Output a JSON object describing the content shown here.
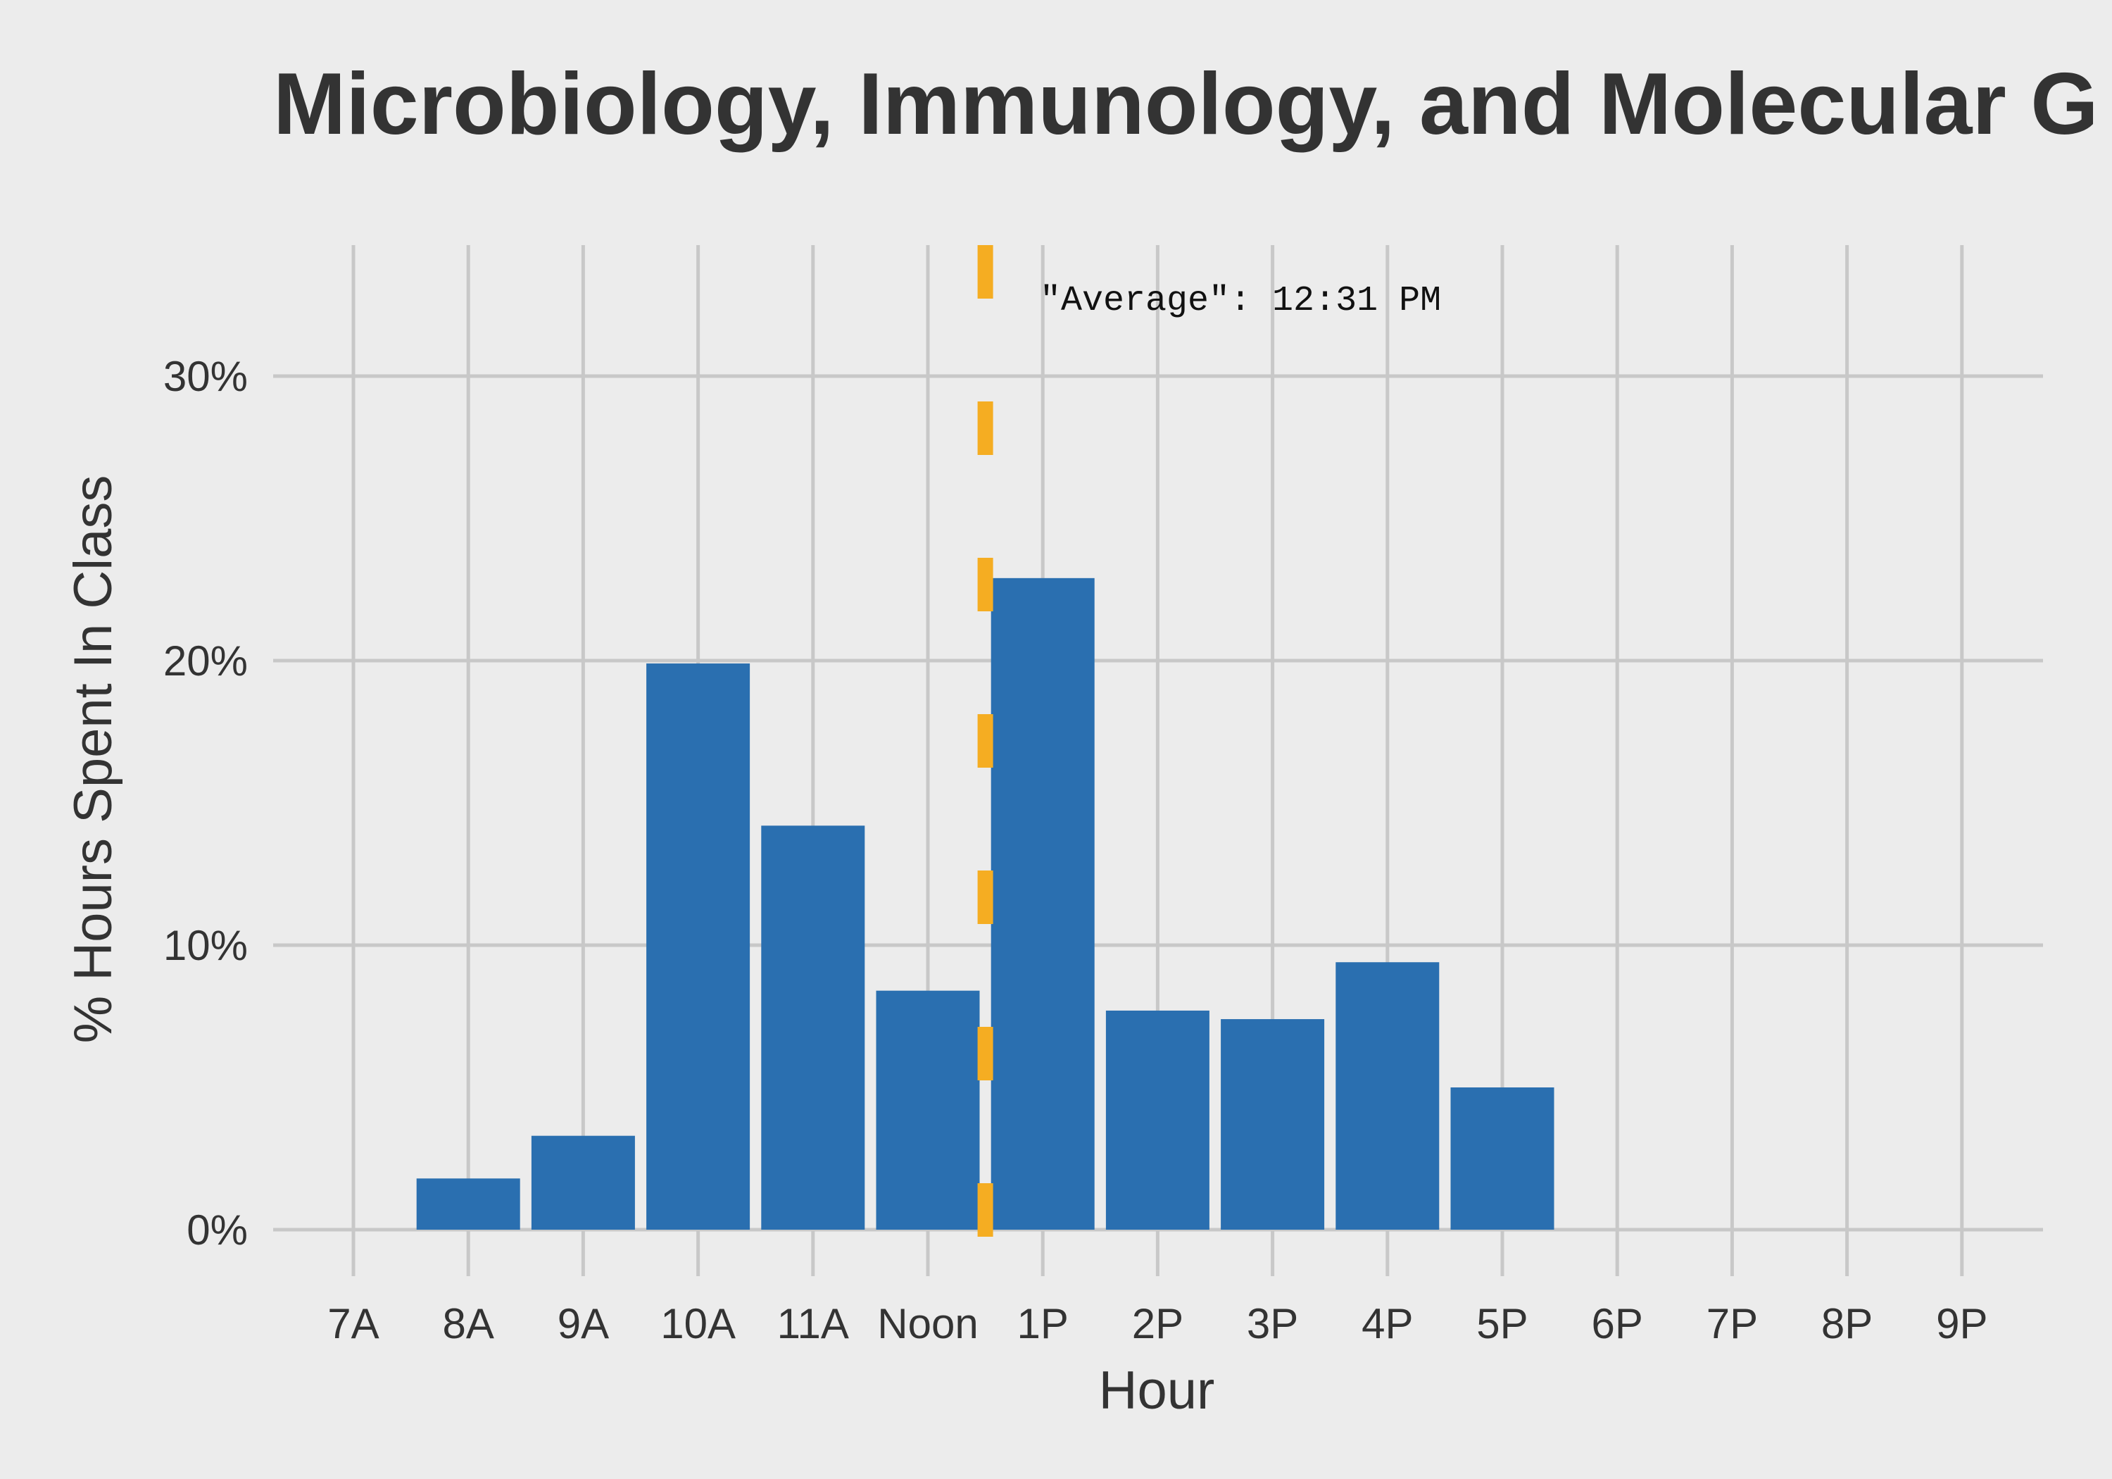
{
  "chart_data": {
    "type": "bar",
    "title": "Microbiology, Immunology, and Molecular G",
    "xlabel": "Hour",
    "ylabel": "% Hours Spent In Class",
    "categories": [
      "7A",
      "8A",
      "9A",
      "10A",
      "11A",
      "Noon",
      "1P",
      "2P",
      "3P",
      "4P",
      "5P",
      "6P",
      "7P",
      "8P",
      "9P"
    ],
    "values": [
      0,
      1.8,
      3.3,
      19.9,
      14.2,
      8.4,
      22.9,
      7.7,
      7.4,
      9.4,
      5.0,
      0,
      0,
      0,
      0
    ],
    "y_ticks": [
      0,
      10,
      20,
      30
    ],
    "y_tick_labels": [
      "0%",
      "10%",
      "20%",
      "30%"
    ],
    "ylim": [
      -1.6,
      34.6
    ],
    "grid": true,
    "legend": "none",
    "colors": {
      "bar": "#2a6fb0",
      "average_line": "#f5ad22",
      "grid": "#c8c8c8",
      "background": "#ececec"
    },
    "annotation": {
      "text": "\"Average\": 12:31 PM",
      "x_category_position": 5.5
    }
  }
}
